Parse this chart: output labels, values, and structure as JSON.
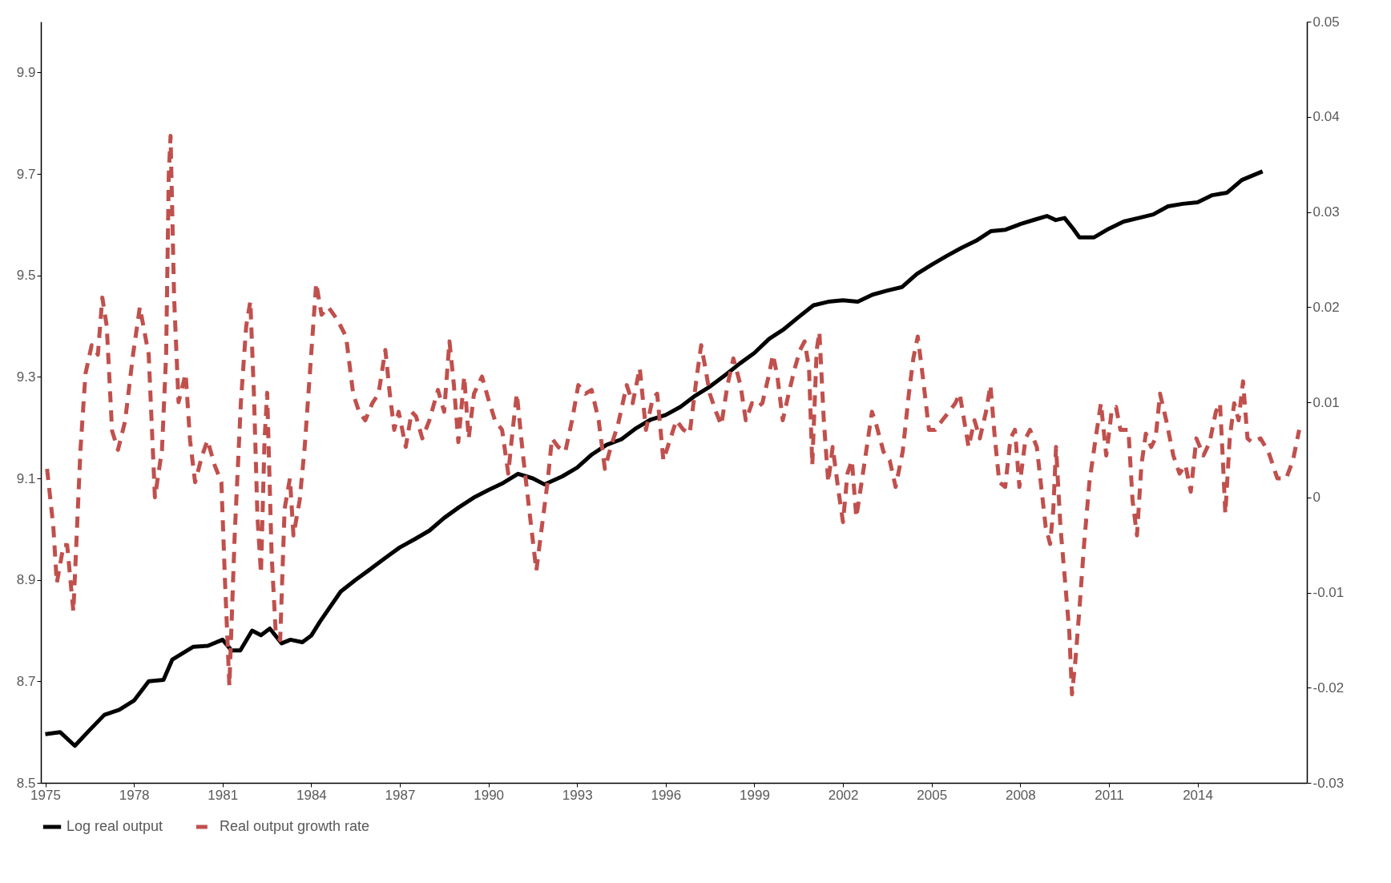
{
  "chart_data": {
    "type": "line",
    "legend": "bottom",
    "grid": false,
    "xlim": [
      1974.85,
      2017.7
    ],
    "xticks": [
      1975,
      1978,
      1981,
      1984,
      1987,
      1990,
      1993,
      1996,
      1999,
      2002,
      2005,
      2008,
      2011,
      2014
    ],
    "ylim": [
      8.5,
      10.0
    ],
    "yticks": [
      8.5,
      8.7,
      8.9,
      9.1,
      9.3,
      9.5,
      9.7,
      9.9
    ],
    "y2lim": [
      -0.03,
      0.05
    ],
    "y2ticks": [
      -0.03,
      -0.02,
      -0.01,
      0,
      0.01,
      0.02,
      0.03,
      0.04,
      0.05
    ],
    "series": [
      {
        "name": "Log real output",
        "color": "#000000",
        "line_style": "solid",
        "x": [
          1975.0,
          1975.5,
          1976.0,
          1976.5,
          1977.0,
          1977.5,
          1978.0,
          1978.5,
          1979.0,
          1979.3,
          1980.0,
          1980.5,
          1981.0,
          1981.3,
          1981.6,
          1982.0,
          1982.3,
          1982.6,
          1983.0,
          1983.3,
          1983.7,
          1984.0,
          1984.3,
          1985.0,
          1985.5,
          1986.0,
          1986.5,
          1987.0,
          1987.5,
          1988.0,
          1988.5,
          1989.0,
          1989.5,
          1990.0,
          1990.5,
          1991.0,
          1991.5,
          1991.9,
          1992.5,
          1993.0,
          1993.5,
          1994.0,
          1994.5,
          1995.0,
          1995.5,
          1996.0,
          1996.5,
          1997.0,
          1997.5,
          1998.0,
          1998.5,
          1999.0,
          1999.5,
          2000.0,
          2000.5,
          2001.0,
          2001.5,
          2002.0,
          2002.5,
          2003.0,
          2003.5,
          2004.0,
          2004.5,
          2005.0,
          2005.5,
          2006.0,
          2006.5,
          2007.0,
          2007.5,
          2008.0,
          2008.5,
          2008.9,
          2009.2,
          2009.5,
          2009.8,
          2010.0,
          2010.5,
          2011.0,
          2011.5,
          2012.0,
          2012.5,
          2013.0,
          2013.5,
          2014.0,
          2014.5,
          2015.0,
          2015.5,
          2016.2
        ],
        "values": [
          8.596,
          8.6,
          8.573,
          8.604,
          8.634,
          8.644,
          8.662,
          8.7,
          8.703,
          8.743,
          8.768,
          8.77,
          8.782,
          8.761,
          8.761,
          8.8,
          8.791,
          8.804,
          8.775,
          8.782,
          8.777,
          8.79,
          8.818,
          8.877,
          8.9,
          8.921,
          8.943,
          8.964,
          8.98,
          8.997,
          9.022,
          9.043,
          9.062,
          9.077,
          9.091,
          9.109,
          9.1,
          9.088,
          9.104,
          9.121,
          9.147,
          9.166,
          9.177,
          9.199,
          9.216,
          9.225,
          9.241,
          9.263,
          9.281,
          9.303,
          9.326,
          9.347,
          9.375,
          9.394,
          9.418,
          9.441,
          9.448,
          9.451,
          9.448,
          9.462,
          9.47,
          9.477,
          9.503,
          9.521,
          9.538,
          9.554,
          9.568,
          9.587,
          9.59,
          9.601,
          9.61,
          9.617,
          9.609,
          9.613,
          9.591,
          9.575,
          9.575,
          9.592,
          9.606,
          9.613,
          9.62,
          9.636,
          9.641,
          9.644,
          9.658,
          9.663,
          9.688,
          9.705
        ]
      },
      {
        "name": "Real output growth rate",
        "color": "#c0504d",
        "line_style": "dashed",
        "axis": "y2",
        "x": [
          1975.06,
          1975.27,
          1975.39,
          1975.62,
          1975.74,
          1975.95,
          1976.19,
          1976.36,
          1976.57,
          1976.78,
          1976.93,
          1977.08,
          1977.26,
          1977.46,
          1977.7,
          1977.97,
          1978.2,
          1978.5,
          1978.71,
          1978.95,
          1979.09,
          1979.18,
          1979.24,
          1979.36,
          1979.51,
          1979.75,
          1979.9,
          1980.07,
          1980.31,
          1980.49,
          1980.73,
          1980.96,
          1981.08,
          1981.23,
          1981.41,
          1981.62,
          1981.8,
          1981.94,
          1982.06,
          1982.18,
          1982.3,
          1982.42,
          1982.51,
          1982.66,
          1982.8,
          1982.95,
          1983.1,
          1983.28,
          1983.4,
          1983.61,
          1983.78,
          1983.99,
          1984.17,
          1984.35,
          1984.58,
          1984.88,
          1985.18,
          1985.42,
          1985.62,
          1985.83,
          1986.07,
          1986.28,
          1986.51,
          1986.66,
          1986.81,
          1986.96,
          1987.2,
          1987.4,
          1987.55,
          1987.76,
          1988.0,
          1988.29,
          1988.5,
          1988.68,
          1988.83,
          1988.98,
          1989.18,
          1989.33,
          1989.51,
          1989.78,
          1989.99,
          1990.22,
          1990.46,
          1990.67,
          1990.82,
          1990.96,
          1991.17,
          1991.41,
          1991.62,
          1991.77,
          1992.0,
          1992.15,
          1992.36,
          1992.6,
          1992.83,
          1993.04,
          1993.28,
          1993.49,
          1993.73,
          1993.94,
          1994.14,
          1994.38,
          1994.68,
          1994.88,
          1995.12,
          1995.33,
          1995.56,
          1995.71,
          1995.92,
          1996.16,
          1996.36,
          1996.6,
          1996.81,
          1997.05,
          1997.2,
          1997.34,
          1997.49,
          1997.7,
          1997.88,
          1998.09,
          1998.29,
          1998.53,
          1998.71,
          1998.92,
          1999.12,
          1999.27,
          1999.48,
          1999.63,
          1999.78,
          1999.96,
          2000.16,
          2000.37,
          2000.55,
          2000.7,
          2000.85,
          2000.96,
          2001.11,
          2001.2,
          2001.35,
          2001.5,
          2001.65,
          2001.85,
          2002.0,
          2002.15,
          2002.3,
          2002.45,
          2002.63,
          2002.83,
          2002.98,
          2003.13,
          2003.37,
          2003.58,
          2003.78,
          2004.02,
          2004.23,
          2004.38,
          2004.53,
          2004.7,
          2004.91,
          2005.12,
          2005.36,
          2005.59,
          2005.8,
          2005.95,
          2006.1,
          2006.25,
          2006.45,
          2006.63,
          2006.84,
          2006.99,
          2007.14,
          2007.29,
          2007.49,
          2007.67,
          2007.82,
          2007.97,
          2008.18,
          2008.33,
          2008.56,
          2008.71,
          2008.86,
          2009.01,
          2009.12,
          2009.21,
          2009.36,
          2009.51,
          2009.66,
          2009.75,
          2009.87,
          2010.01,
          2010.16,
          2010.34,
          2010.55,
          2010.73,
          2010.91,
          2011.09,
          2011.24,
          2011.39,
          2011.66,
          2011.8,
          2011.95,
          2012.1,
          2012.25,
          2012.43,
          2012.58,
          2012.73,
          2012.94,
          2013.18,
          2013.39,
          2013.59,
          2013.77,
          2013.96,
          2014.2,
          2014.41,
          2014.62,
          2014.76,
          2014.85,
          2014.94,
          2015.09,
          2015.24,
          2015.39,
          2015.54,
          2015.69,
          2015.84,
          2016.13,
          2016.4,
          2016.7,
          2017.0,
          2017.23,
          2017.44
        ],
        "values": [
          0.003,
          -0.003,
          -0.009,
          -0.005,
          -0.005,
          -0.012,
          0.005,
          0.013,
          0.016,
          0.015,
          0.021,
          0.018,
          0.007,
          0.005,
          0.008,
          0.015,
          0.02,
          0.015,
          0.0,
          0.005,
          0.015,
          0.034,
          0.038,
          0.021,
          0.01,
          0.013,
          0.006,
          0.0016,
          0.0044,
          0.006,
          0.0034,
          0.0016,
          -0.0086,
          -0.0198,
          -0.004,
          0.01,
          0.018,
          0.0206,
          0.011,
          -0.002,
          -0.008,
          0.006,
          0.011,
          -0.006,
          -0.0142,
          -0.015,
          -0.0012,
          0.002,
          -0.004,
          -0.0003,
          0.0053,
          0.0146,
          0.0225,
          0.0192,
          0.02,
          0.0187,
          0.0169,
          0.0109,
          0.009,
          0.0081,
          0.0099,
          0.0109,
          0.0155,
          0.0109,
          0.0071,
          0.009,
          0.0053,
          0.009,
          0.0085,
          0.0062,
          0.0081,
          0.0113,
          0.009,
          0.0164,
          0.0118,
          0.0058,
          0.0127,
          0.0062,
          0.0109,
          0.0127,
          0.0104,
          0.0081,
          0.0071,
          0.0025,
          0.0071,
          0.0109,
          0.0044,
          -0.0021,
          -0.0077,
          -0.004,
          0.0016,
          0.0062,
          0.0053,
          0.0048,
          0.0081,
          0.0118,
          0.0109,
          0.0113,
          0.0081,
          0.003,
          0.0053,
          0.0076,
          0.0118,
          0.0099,
          0.0136,
          0.0071,
          0.0104,
          0.0109,
          0.0039,
          0.0062,
          0.0081,
          0.0071,
          0.0067,
          0.0127,
          0.016,
          0.0136,
          0.0109,
          0.009,
          0.0076,
          0.0118,
          0.0146,
          0.0118,
          0.0081,
          0.0099,
          0.0095,
          0.0099,
          0.0127,
          0.015,
          0.0127,
          0.0081,
          0.0109,
          0.0136,
          0.0155,
          0.0164,
          0.0136,
          0.0034,
          0.0155,
          0.0174,
          0.0081,
          0.0016,
          0.0053,
          0.0006,
          -0.0026,
          0.0025,
          0.0039,
          -0.0021,
          0.0016,
          0.0058,
          0.009,
          0.0076,
          0.0048,
          0.0039,
          0.0011,
          0.0048,
          0.0109,
          0.0146,
          0.0169,
          0.0127,
          0.0071,
          0.0071,
          0.0081,
          0.009,
          0.0099,
          0.0109,
          0.0081,
          0.0053,
          0.0081,
          0.0062,
          0.009,
          0.0118,
          0.0062,
          0.0016,
          0.0011,
          0.0062,
          0.0071,
          0.0011,
          0.0062,
          0.0071,
          0.0053,
          0.0011,
          -0.0031,
          -0.0049,
          -0.0012,
          0.0053,
          -0.0031,
          -0.0086,
          -0.0142,
          -0.0207,
          -0.017,
          -0.0114,
          -0.0049,
          0.0016,
          0.0062,
          0.0099,
          0.0044,
          0.009,
          0.0095,
          0.0071,
          0.0071,
          -0.0003,
          -0.004,
          0.0034,
          0.0067,
          0.0053,
          0.0062,
          0.0109,
          0.0081,
          0.0044,
          0.0025,
          0.0034,
          0.0006,
          0.0062,
          0.0044,
          0.0058,
          0.009,
          0.0099,
          0.0044,
          -0.0017,
          0.0062,
          0.0099,
          0.0081,
          0.0122,
          0.0062,
          0.0058,
          0.0062,
          0.0048,
          0.002,
          0.002,
          0.0039,
          0.0071
        ]
      }
    ]
  }
}
